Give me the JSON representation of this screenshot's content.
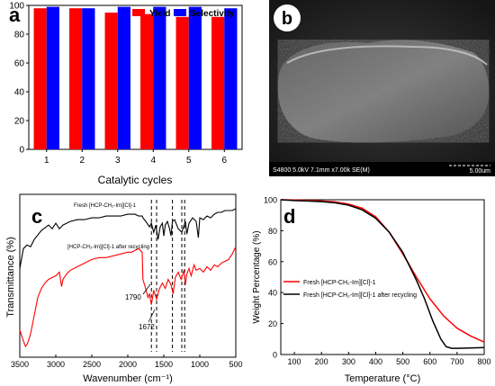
{
  "panels": {
    "a": {
      "letter": "a",
      "chart_data": {
        "type": "bar",
        "categories": [
          "1",
          "2",
          "3",
          "4",
          "5",
          "6"
        ],
        "series": [
          {
            "name": "Yield",
            "values": [
              98,
              98,
              95,
              94,
              92,
              92
            ]
          },
          {
            "name": "Selectivity",
            "values": [
              99,
              98,
              99,
              99,
              99,
              98
            ]
          }
        ],
        "xlabel": "Catalytic cycles",
        "ylabel": "",
        "ylim": [
          0,
          100
        ],
        "yticks": [
          0,
          20,
          40,
          60,
          80,
          100
        ],
        "legend": "top-right",
        "colors": {
          "Yield": "#ff0000",
          "Selectivity": "#0000ff"
        },
        "grid": false
      }
    },
    "b": {
      "letter": "b",
      "sem_info": "S4800 5.0kV 7.1mm x7.00k SE(M)",
      "scale_label": "5.00um"
    },
    "c": {
      "letter": "c",
      "chart_data": {
        "type": "line",
        "title": "",
        "xlabel": "Wavenumber (cm⁻¹)",
        "ylabel": "Transmittance (%)",
        "xlim": [
          3500,
          500
        ],
        "xticks": [
          3500,
          3000,
          2500,
          2000,
          1500,
          1000,
          500
        ],
        "series": [
          {
            "name": "Fresh [HCP-CH₂-Im][Cl]-1",
            "color": "#000000",
            "x": [
              3500,
              3450,
              3400,
              3350,
              3300,
              3200,
              3100,
              3050,
              3000,
              2950,
              2900,
              2800,
              2700,
              2600,
              2500,
              2400,
              2300,
              2200,
              2100,
              2000,
              1950,
              1900,
              1850,
              1800,
              1790,
              1750,
              1700,
              1672,
              1640,
              1610,
              1580,
              1550,
              1520,
              1500,
              1480,
              1450,
              1420,
              1400,
              1380,
              1350,
              1300,
              1250,
              1200,
              1180,
              1150,
              1100,
              1050,
              1020,
              1000,
              950,
              900,
              850,
              800,
              750,
              700,
              650,
              600,
              550,
              500
            ],
            "y": [
              46,
              57,
              59,
              58,
              62,
              67,
              70,
              68,
              71,
              68,
              70,
              72,
              73,
              73,
              74,
              74,
              75,
              75,
              75,
              76,
              76,
              76,
              75,
              75,
              74,
              72,
              69,
              71,
              66,
              70,
              62,
              69,
              71,
              64,
              70,
              72,
              68,
              64,
              72,
              73,
              68,
              66,
              72,
              65,
              71,
              74,
              72,
              63,
              74,
              73,
              75,
              74,
              76,
              77,
              77,
              78,
              78,
              78,
              79
            ]
          },
          {
            "name": "[HCP-CH₂-Im][Cl]-1 after recycling",
            "color": "#ff0000",
            "x": [
              3500,
              3450,
              3420,
              3400,
              3380,
              3350,
              3300,
              3250,
              3200,
              3150,
              3100,
              3050,
              3000,
              2950,
              2920,
              2900,
              2850,
              2800,
              2700,
              2600,
              2500,
              2400,
              2300,
              2200,
              2100,
              2000,
              1950,
              1900,
              1850,
              1800,
              1790,
              1760,
              1720,
              1700,
              1672,
              1640,
              1600,
              1560,
              1520,
              1480,
              1440,
              1400,
              1370,
              1340,
              1300,
              1260,
              1220,
              1200,
              1180,
              1150,
              1120,
              1080,
              1050,
              1000,
              950,
              900,
              850,
              800,
              750,
              700,
              650,
              600,
              550,
              500
            ],
            "y": [
              12,
              6,
              3,
              4,
              6,
              10,
              20,
              30,
              35,
              38,
              40,
              41,
              42,
              44,
              36,
              40,
              43,
              45,
              47,
              49,
              51,
              52,
              52,
              53,
              54,
              55,
              55,
              56,
              57,
              55,
              40,
              36,
              30,
              32,
              26,
              34,
              29,
              35,
              38,
              35,
              40,
              37,
              32,
              41,
              44,
              40,
              45,
              37,
              43,
              46,
              42,
              48,
              45,
              46,
              44,
              47,
              45,
              48,
              47,
              49,
              50,
              51,
              54,
              58
            ]
          }
        ],
        "dashed_lines": [
          1672,
          1600,
          1380,
          1250,
          1210
        ],
        "annotations": [
          "1790",
          "1672"
        ]
      }
    },
    "d": {
      "letter": "d",
      "chart_data": {
        "type": "line",
        "xlabel": "Temperature (°C)",
        "ylabel": "Weight Percentage (%)",
        "xlim": [
          50,
          800
        ],
        "ylim": [
          0,
          100
        ],
        "xticks": [
          100,
          200,
          300,
          400,
          500,
          600,
          700,
          800
        ],
        "yticks": [
          0,
          20,
          40,
          60,
          80,
          100
        ],
        "legend": "center-left",
        "series": [
          {
            "name": "Fresh [HCP-CH₂-Im][Cl]-1",
            "color": "#ff0000",
            "x": [
              50,
              100,
              150,
              200,
              250,
              300,
              350,
              400,
              450,
              500,
              550,
              600,
              650,
              700,
              750,
              800
            ],
            "y": [
              100,
              99.8,
              99.6,
              99.2,
              98.6,
              97.2,
              94.5,
              89,
              79,
              65,
              50,
              36,
              25,
              17,
              12,
              8
            ]
          },
          {
            "name": "Fresh [HCP-CH₂-Im][Cl]-1 after recycling",
            "color": "#000000",
            "x": [
              50,
              100,
              150,
              200,
              250,
              300,
              350,
              400,
              450,
              500,
              550,
              580,
              610,
              640,
              660,
              680,
              700,
              750,
              800
            ],
            "y": [
              100,
              99.5,
              99.2,
              98.8,
              98,
              96.5,
              93.5,
              88,
              79,
              66,
              48,
              36,
              22,
              10,
              5,
              4,
              4,
              4.2,
              4.5
            ]
          }
        ]
      }
    }
  }
}
